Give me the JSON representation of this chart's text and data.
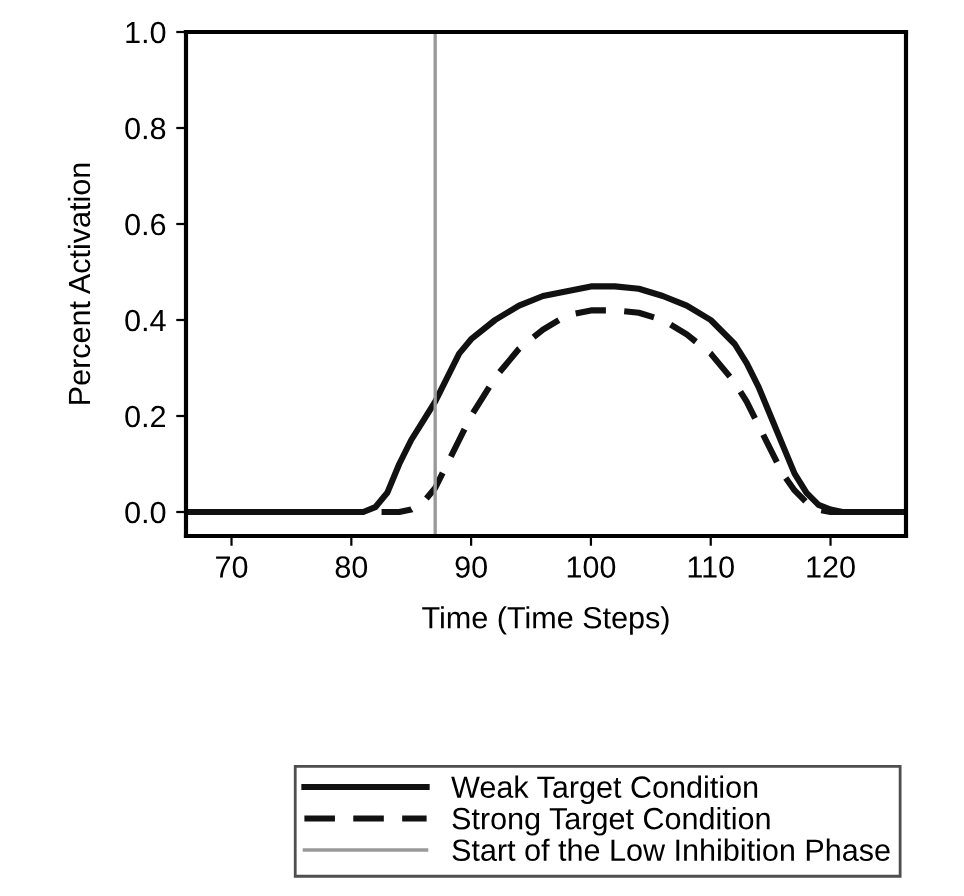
{
  "chart_data": {
    "type": "line",
    "xlabel": "Time (Time Steps)",
    "ylabel": "Percent Activation",
    "xlim": [
      66.2,
      126.3
    ],
    "xticks": [
      70,
      80,
      90,
      100,
      110,
      120
    ],
    "ylim": [
      -0.05,
      1.0
    ],
    "yticks": [
      {
        "value": 0,
        "label": "0.0"
      },
      0.2,
      0.4,
      0.6,
      0.8,
      {
        "value": 1,
        "label": "1.0"
      }
    ],
    "grid": false,
    "legend": "bottom",
    "marker": "none",
    "series": [
      {
        "name": "Weak Target Condition",
        "color": "#111111",
        "line_style": "solid",
        "x": [
          66.2,
          75,
          81,
          82,
          83,
          84,
          85,
          86,
          87,
          88,
          89,
          90,
          92,
          94,
          96,
          98,
          100,
          102,
          104,
          106,
          108,
          110,
          112,
          113,
          114,
          115,
          116,
          117,
          118,
          119,
          120,
          121,
          126.3
        ],
        "values": [
          0,
          0,
          0,
          0.01,
          0.04,
          0.1,
          0.15,
          0.19,
          0.23,
          0.28,
          0.33,
          0.36,
          0.4,
          0.43,
          0.45,
          0.46,
          0.47,
          0.47,
          0.465,
          0.45,
          0.43,
          0.4,
          0.35,
          0.31,
          0.26,
          0.2,
          0.14,
          0.08,
          0.04,
          0.015,
          0.005,
          0,
          0
        ]
      },
      {
        "name": "Strong Target Condition",
        "color": "#111111",
        "line_style": "dashed",
        "x": [
          66.2,
          75,
          84,
          85,
          86,
          87,
          88,
          89,
          90,
          91,
          92,
          94,
          96,
          98,
          100,
          102,
          104,
          106,
          108,
          110,
          112,
          113,
          114,
          115,
          116,
          117,
          118,
          119,
          120,
          126.3
        ],
        "values": [
          0,
          0,
          0,
          0.005,
          0.02,
          0.05,
          0.1,
          0.15,
          0.2,
          0.24,
          0.28,
          0.34,
          0.38,
          0.41,
          0.42,
          0.42,
          0.415,
          0.4,
          0.37,
          0.33,
          0.27,
          0.23,
          0.18,
          0.13,
          0.08,
          0.045,
          0.02,
          0.005,
          0,
          0
        ]
      }
    ],
    "ref_lines": [
      {
        "axis": "x",
        "value": 87,
        "label": "Start of the Low Inhibition Phase",
        "color": "#999999",
        "line_style": "solid"
      }
    ]
  }
}
